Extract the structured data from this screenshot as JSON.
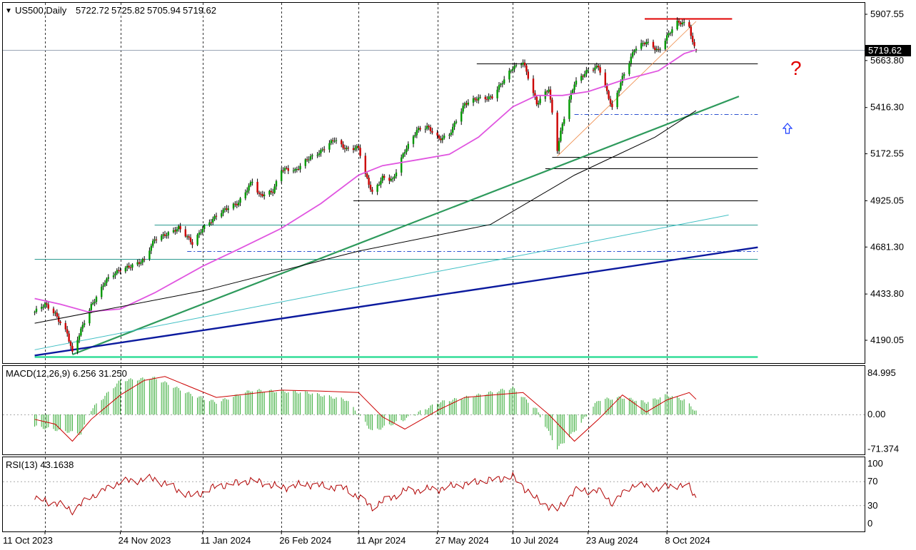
{
  "main_panel": {
    "symbol_header": "US500,Daily",
    "ohlc": [
      "5722.72",
      "5725.82",
      "5705.94",
      "5719.62"
    ],
    "current_price_label": "5719.62",
    "question_mark": "?",
    "up_arrow_icon": "hollow-up-arrow-icon",
    "y_ticks": [
      "5907.55",
      "5663.80",
      "5416.30",
      "5172.55",
      "4925.05",
      "4681.30",
      "4433.80",
      "4190.05"
    ]
  },
  "macd_panel": {
    "label": "MACD(12,26,9) 6.256 31.250",
    "y_ticks": [
      "84.995",
      "0.00",
      "-71.374"
    ]
  },
  "rsi_panel": {
    "label": "RSI(13) 43.1638",
    "y_ticks": [
      "100",
      "70",
      "30",
      "0"
    ]
  },
  "x_axis": {
    "ticks": [
      "11 Oct 2023",
      "24 Nov 2023",
      "11 Jan 2024",
      "26 Feb 2024",
      "11 Apr 2024",
      "27 May 2024",
      "10 Jul 2024",
      "23 Aug 2024",
      "8 Oct 2024"
    ]
  },
  "colors": {
    "bull": "#009900",
    "bear": "#cc0000",
    "ma_short": "#e055e0",
    "ma_long": "#000000",
    "trend_green": "#2e9a5c",
    "trend_blue": "#0b1a9e",
    "trend_teal": "#3fbfc4",
    "resistance_red": "#e00000",
    "macd_hist": "#33aa33",
    "macd_signal": "#cc0000",
    "rsi_line": "#b00000"
  },
  "chart_data": {
    "type": "candlestick",
    "instrument": "US500",
    "timeframe": "Daily",
    "last_bar": {
      "open": 5722.72,
      "high": 5725.82,
      "low": 5705.94,
      "close": 5719.62
    },
    "x_range": [
      "2023-10-11",
      "2024-10-25"
    ],
    "ylim": [
      4085,
      5990
    ],
    "price_path": [
      [
        "2023-10-05",
        4340
      ],
      [
        "2023-10-11",
        4375
      ],
      [
        "2023-10-17",
        4330
      ],
      [
        "2023-10-24",
        4230
      ],
      [
        "2023-10-27",
        4120
      ],
      [
        "2023-11-01",
        4240
      ],
      [
        "2023-11-07",
        4375
      ],
      [
        "2023-11-15",
        4500
      ],
      [
        "2023-11-24",
        4560
      ],
      [
        "2023-12-01",
        4590
      ],
      [
        "2023-12-08",
        4610
      ],
      [
        "2023-12-14",
        4720
      ],
      [
        "2023-12-20",
        4750
      ],
      [
        "2023-12-28",
        4780
      ],
      [
        "2024-01-05",
        4700
      ],
      [
        "2024-01-11",
        4785
      ],
      [
        "2024-01-19",
        4840
      ],
      [
        "2024-01-26",
        4890
      ],
      [
        "2024-02-01",
        4920
      ],
      [
        "2024-02-09",
        5025
      ],
      [
        "2024-02-13",
        4950
      ],
      [
        "2024-02-21",
        4980
      ],
      [
        "2024-02-26",
        5090
      ],
      [
        "2024-03-05",
        5080
      ],
      [
        "2024-03-12",
        5150
      ],
      [
        "2024-03-20",
        5180
      ],
      [
        "2024-03-28",
        5250
      ],
      [
        "2024-04-04",
        5200
      ],
      [
        "2024-04-11",
        5200
      ],
      [
        "2024-04-15",
        5060
      ],
      [
        "2024-04-19",
        4970
      ],
      [
        "2024-04-25",
        5050
      ],
      [
        "2024-05-01",
        5030
      ],
      [
        "2024-05-08",
        5190
      ],
      [
        "2024-05-15",
        5300
      ],
      [
        "2024-05-21",
        5310
      ],
      [
        "2024-05-28",
        5250
      ],
      [
        "2024-06-03",
        5280
      ],
      [
        "2024-06-12",
        5430
      ],
      [
        "2024-06-20",
        5470
      ],
      [
        "2024-06-28",
        5470
      ],
      [
        "2024-07-05",
        5560
      ],
      [
        "2024-07-10",
        5630
      ],
      [
        "2024-07-16",
        5660
      ],
      [
        "2024-07-24",
        5430
      ],
      [
        "2024-07-31",
        5520
      ],
      [
        "2024-08-05",
        5200
      ],
      [
        "2024-08-08",
        5330
      ],
      [
        "2024-08-15",
        5540
      ],
      [
        "2024-08-23",
        5620
      ],
      [
        "2024-08-29",
        5630
      ],
      [
        "2024-09-06",
        5410
      ],
      [
        "2024-09-12",
        5580
      ],
      [
        "2024-09-19",
        5720
      ],
      [
        "2024-09-26",
        5760
      ],
      [
        "2024-10-03",
        5720
      ],
      [
        "2024-10-08",
        5790
      ],
      [
        "2024-10-14",
        5860
      ],
      [
        "2024-10-18",
        5860
      ],
      [
        "2024-10-21",
        5850
      ],
      [
        "2024-10-23",
        5760
      ],
      [
        "2024-10-25",
        5719.62
      ]
    ],
    "overlays": {
      "ma_short_path": [
        [
          "2023-10-05",
          4410
        ],
        [
          "2023-10-20",
          4380
        ],
        [
          "2023-11-05",
          4340
        ],
        [
          "2023-11-24",
          4355
        ],
        [
          "2023-12-14",
          4440
        ],
        [
          "2024-01-11",
          4580
        ],
        [
          "2024-02-01",
          4670
        ],
        [
          "2024-02-26",
          4780
        ],
        [
          "2024-03-20",
          4910
        ],
        [
          "2024-04-11",
          5060
        ],
        [
          "2024-04-25",
          5110
        ],
        [
          "2024-05-15",
          5140
        ],
        [
          "2024-06-03",
          5170
        ],
        [
          "2024-06-20",
          5260
        ],
        [
          "2024-07-10",
          5420
        ],
        [
          "2024-07-24",
          5480
        ],
        [
          "2024-08-08",
          5480
        ],
        [
          "2024-08-23",
          5500
        ],
        [
          "2024-09-12",
          5560
        ],
        [
          "2024-10-03",
          5610
        ],
        [
          "2024-10-18",
          5700
        ],
        [
          "2024-10-25",
          5720
        ]
      ],
      "ma_long_path": [
        [
          "2023-10-05",
          4280
        ],
        [
          "2024-01-11",
          4450
        ],
        [
          "2024-04-11",
          4660
        ],
        [
          "2024-06-27",
          4800
        ],
        [
          "2024-08-15",
          5060
        ],
        [
          "2024-10-01",
          5260
        ],
        [
          "2024-10-25",
          5400
        ]
      ],
      "trendlines": [
        {
          "name": "green rising trendline",
          "from": [
            "2023-10-27",
            4115
          ],
          "to": [
            "2024-11-19",
            5475
          ]
        },
        {
          "name": "blue long-term trendline",
          "from": [
            "2023-10-05",
            4110
          ],
          "to": [
            "2024-11-30",
            4680
          ]
        },
        {
          "name": "teal trendline",
          "from": [
            "2023-10-05",
            4140
          ],
          "to": [
            "2024-11-13",
            4850
          ]
        },
        {
          "name": "thin orange trendline",
          "from": [
            "2024-08-05",
            5160
          ],
          "to": [
            "2024-10-25",
            5870
          ]
        }
      ],
      "horizontal_levels": [
        {
          "price": 5885,
          "from": "2024-09-25",
          "to": "2024-11-15",
          "style": "red resistance"
        },
        {
          "price": 5650,
          "from": "2024-06-19",
          "to": "2024-11-30",
          "style": "solid"
        },
        {
          "price": 5380,
          "from": "2024-08-15",
          "to": "2024-11-30",
          "style": "dash-dot blue"
        },
        {
          "price": 5155,
          "from": "2024-08-02",
          "to": "2024-11-30",
          "style": "solid"
        },
        {
          "price": 5095,
          "from": "2024-07-29",
          "to": "2024-11-30",
          "style": "solid"
        },
        {
          "price": 4925,
          "from": "2024-04-08",
          "to": "2024-11-30",
          "style": "solid"
        },
        {
          "price": 4800,
          "from": "2023-12-14",
          "to": "2024-11-30",
          "style": "solid teal"
        },
        {
          "price": 4660,
          "from": "2024-01-02",
          "to": "2024-11-30",
          "style": "dash-dot blue"
        },
        {
          "price": 4620,
          "from": "2023-10-05",
          "to": "2024-11-30",
          "style": "solid teal"
        },
        {
          "price": 4105,
          "from": "2023-10-05",
          "to": "2024-11-30",
          "style": "green support"
        }
      ]
    },
    "macd": {
      "params": "12,26,9",
      "main": 6.256,
      "signal": 31.25,
      "ylim": [
        -85,
        100
      ],
      "signal_path": [
        [
          "2023-10-05",
          -10
        ],
        [
          "2023-10-17",
          -20
        ],
        [
          "2023-10-27",
          -55
        ],
        [
          "2023-11-07",
          -10
        ],
        [
          "2023-11-24",
          40
        ],
        [
          "2023-12-08",
          70
        ],
        [
          "2023-12-20",
          78
        ],
        [
          "2024-01-05",
          55
        ],
        [
          "2024-01-19",
          35
        ],
        [
          "2024-02-01",
          40
        ],
        [
          "2024-02-26",
          50
        ],
        [
          "2024-03-20",
          48
        ],
        [
          "2024-04-11",
          45
        ],
        [
          "2024-04-25",
          -5
        ],
        [
          "2024-05-08",
          -30
        ],
        [
          "2024-05-28",
          10
        ],
        [
          "2024-06-12",
          35
        ],
        [
          "2024-06-28",
          40
        ],
        [
          "2024-07-16",
          45
        ],
        [
          "2024-07-31",
          0
        ],
        [
          "2024-08-15",
          -55
        ],
        [
          "2024-08-29",
          -10
        ],
        [
          "2024-09-12",
          40
        ],
        [
          "2024-09-26",
          5
        ],
        [
          "2024-10-08",
          30
        ],
        [
          "2024-10-21",
          45
        ],
        [
          "2024-10-25",
          31.25
        ]
      ],
      "histogram_path": [
        [
          "2023-10-05",
          -25
        ],
        [
          "2023-10-24",
          -35
        ],
        [
          "2023-11-01",
          -40
        ],
        [
          "2023-11-07",
          10
        ],
        [
          "2023-11-24",
          70
        ],
        [
          "2023-12-14",
          75
        ],
        [
          "2024-01-05",
          40
        ],
        [
          "2024-01-19",
          25
        ],
        [
          "2024-02-09",
          50
        ],
        [
          "2024-03-12",
          45
        ],
        [
          "2024-04-04",
          30
        ],
        [
          "2024-04-19",
          -35
        ],
        [
          "2024-05-08",
          -10
        ],
        [
          "2024-05-28",
          25
        ],
        [
          "2024-06-20",
          40
        ],
        [
          "2024-07-10",
          55
        ],
        [
          "2024-07-24",
          10
        ],
        [
          "2024-08-05",
          -70
        ],
        [
          "2024-08-15",
          -35
        ],
        [
          "2024-08-29",
          30
        ],
        [
          "2024-09-12",
          35
        ],
        [
          "2024-09-26",
          25
        ],
        [
          "2024-10-08",
          40
        ],
        [
          "2024-10-18",
          30
        ],
        [
          "2024-10-25",
          6.256
        ]
      ]
    },
    "rsi": {
      "period": 13,
      "value": 43.1638,
      "levels": [
        30,
        70
      ],
      "ylim": [
        0,
        100
      ],
      "path": [
        [
          "2023-10-05",
          40
        ],
        [
          "2023-10-17",
          35
        ],
        [
          "2023-10-27",
          22
        ],
        [
          "2023-11-07",
          45
        ],
        [
          "2023-11-24",
          70
        ],
        [
          "2023-12-14",
          75
        ],
        [
          "2024-01-05",
          45
        ],
        [
          "2024-01-19",
          62
        ],
        [
          "2024-02-09",
          72
        ],
        [
          "2024-02-26",
          60
        ],
        [
          "2024-03-12",
          66
        ],
        [
          "2024-04-04",
          58
        ],
        [
          "2024-04-19",
          28
        ],
        [
          "2024-05-08",
          55
        ],
        [
          "2024-05-28",
          58
        ],
        [
          "2024-06-20",
          70
        ],
        [
          "2024-07-10",
          78
        ],
        [
          "2024-07-24",
          40
        ],
        [
          "2024-08-05",
          22
        ],
        [
          "2024-08-15",
          55
        ],
        [
          "2024-08-29",
          55
        ],
        [
          "2024-09-06",
          35
        ],
        [
          "2024-09-19",
          66
        ],
        [
          "2024-10-03",
          58
        ],
        [
          "2024-10-14",
          65
        ],
        [
          "2024-10-21",
          60
        ],
        [
          "2024-10-25",
          43.1638
        ]
      ]
    }
  }
}
